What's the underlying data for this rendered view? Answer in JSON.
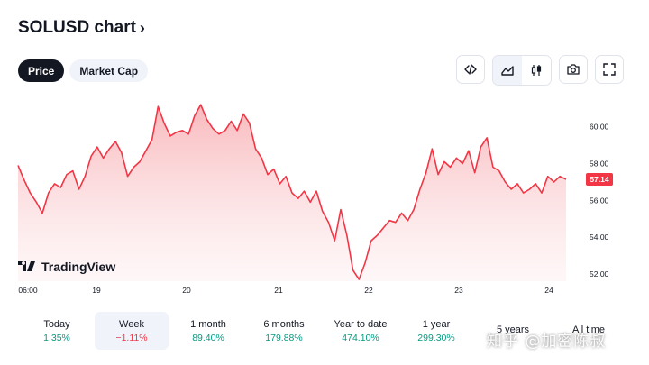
{
  "header": {
    "title": "SOLUSD chart",
    "chevron": "›"
  },
  "tabs": [
    {
      "label": "Price",
      "active": true
    },
    {
      "label": "Market Cap",
      "active": false
    }
  ],
  "toolbar": {
    "embed_icon": "code-icon",
    "area_icon": "area-chart-icon",
    "candle_icon": "candlestick-icon",
    "snapshot_icon": "camera-icon",
    "fullscreen_icon": "fullscreen-icon",
    "selected_style": "area"
  },
  "colors": {
    "accent": "#f23645",
    "positive": "#089981",
    "negative": "#f23645",
    "fill_top": "#f8b5b9"
  },
  "brand": {
    "name": "TradingView"
  },
  "chart_data": {
    "type": "area",
    "y_ticks": [
      "60.00",
      "58.00",
      "56.00",
      "54.00",
      "52.00"
    ],
    "ylim": [
      51.6,
      61.7
    ],
    "x_ticks": [
      "06:00",
      "19",
      "20",
      "21",
      "22",
      "23",
      "24"
    ],
    "last_price": "57.14",
    "grid": false,
    "values": [
      57.9,
      57.1,
      56.4,
      55.9,
      55.3,
      56.4,
      56.9,
      56.7,
      57.4,
      57.6,
      56.6,
      57.3,
      58.4,
      58.9,
      58.3,
      58.8,
      59.2,
      58.6,
      57.3,
      57.8,
      58.1,
      58.7,
      59.3,
      61.1,
      60.2,
      59.5,
      59.7,
      59.8,
      59.6,
      60.6,
      61.2,
      60.4,
      59.9,
      59.6,
      59.8,
      60.3,
      59.8,
      60.7,
      60.2,
      58.8,
      58.3,
      57.4,
      57.7,
      56.9,
      57.3,
      56.4,
      56.1,
      56.5,
      55.9,
      56.5,
      55.4,
      54.8,
      53.8,
      55.5,
      54.1,
      52.2,
      51.7,
      52.6,
      53.8,
      54.1,
      54.5,
      54.9,
      54.8,
      55.3,
      54.9,
      55.5,
      56.6,
      57.5,
      58.8,
      57.4,
      58.1,
      57.8,
      58.3,
      58.0,
      58.7,
      57.5,
      58.9,
      59.4,
      57.8,
      57.6,
      57.0,
      56.6,
      56.9,
      56.4,
      56.6,
      56.9,
      56.4,
      57.3,
      57.0,
      57.3,
      57.14
    ]
  },
  "periods": [
    {
      "label": "Today",
      "change": "1.35%",
      "sign": "pos",
      "active": false
    },
    {
      "label": "Week",
      "change": "−1.11%",
      "sign": "neg",
      "active": true
    },
    {
      "label": "1 month",
      "change": "89.40%",
      "sign": "pos",
      "active": false
    },
    {
      "label": "6 months",
      "change": "179.88%",
      "sign": "pos",
      "active": false
    },
    {
      "label": "Year to date",
      "change": "474.10%",
      "sign": "pos",
      "active": false
    },
    {
      "label": "1 year",
      "change": "299.30%",
      "sign": "pos",
      "active": false
    },
    {
      "label": "5 years",
      "change": "",
      "sign": "pos",
      "active": false
    },
    {
      "label": "All time",
      "change": "",
      "sign": "pos",
      "active": false
    }
  ],
  "watermark": "知乎 @加密陈叔"
}
